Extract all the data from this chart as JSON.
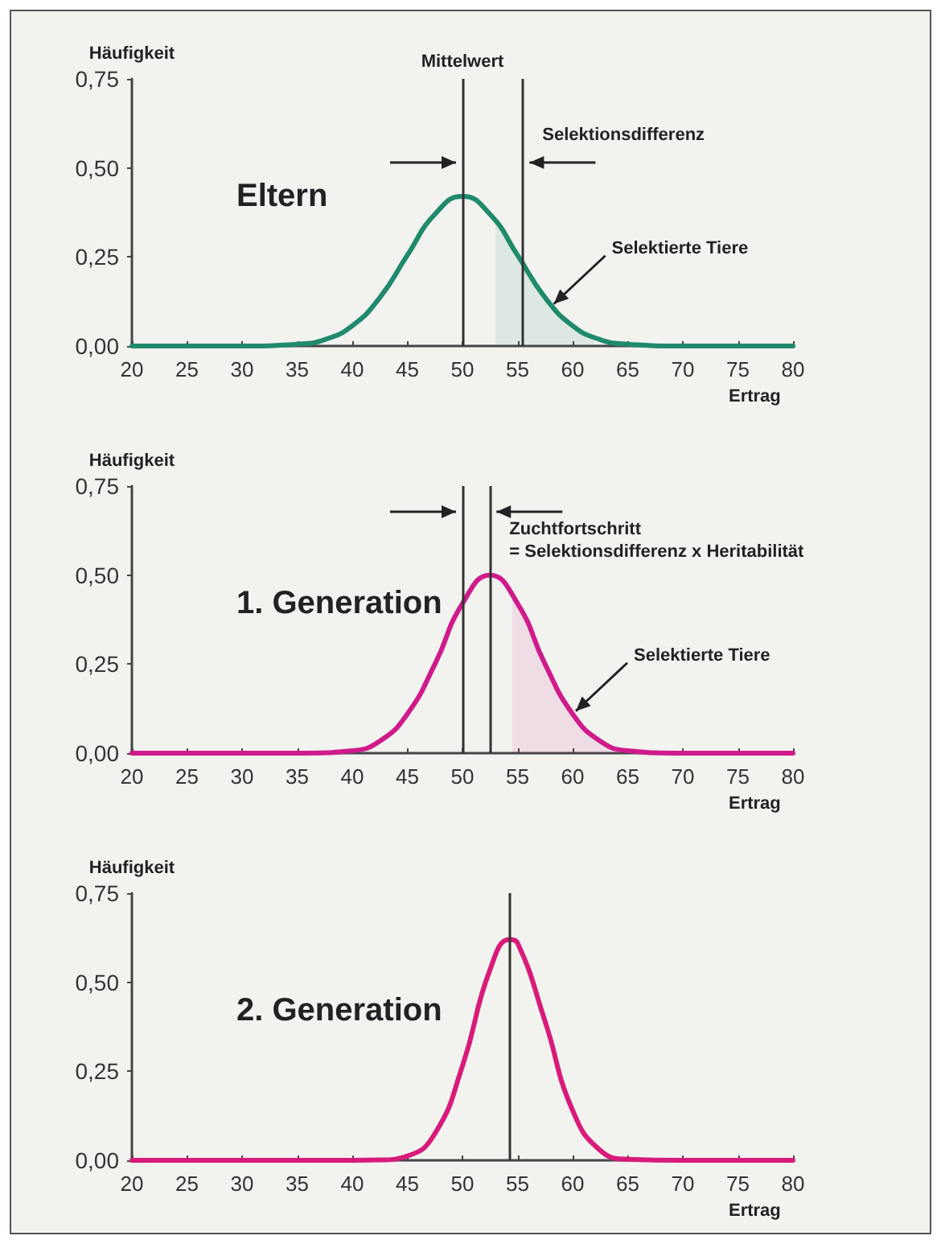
{
  "chart_data": [
    {
      "type": "line",
      "title": "Eltern",
      "xlabel": "Ertrag",
      "ylabel": "Häufigkeit",
      "marker": "none",
      "grid": false,
      "xlim": [
        20,
        80
      ],
      "xticks": [
        20,
        25,
        30,
        35,
        40,
        45,
        50,
        55,
        60,
        65,
        70,
        75,
        80
      ],
      "ylim": [
        0,
        0.75
      ],
      "yticks": [
        {
          "value": 0,
          "label": "0,00"
        },
        {
          "value": 0.25,
          "label": "0,25"
        },
        {
          "value": 0.5,
          "label": "0,50"
        },
        {
          "value": 0.75,
          "label": "0,75"
        }
      ],
      "series": [
        {
          "color": "#1f8a6c",
          "x": [
            20,
            30,
            35,
            37.5,
            40,
            42.5,
            45,
            47.5,
            50,
            52.5,
            55,
            57.5,
            60,
            62.5,
            65,
            70,
            80
          ],
          "values": [
            0,
            0,
            0.005,
            0.018,
            0.057,
            0.136,
            0.255,
            0.37,
            0.42,
            0.37,
            0.255,
            0.136,
            0.057,
            0.018,
            0.005,
            0,
            0
          ]
        },
        {
          "type": "area",
          "color": "#1f8a6c",
          "x": [
            53,
            54,
            55,
            56,
            57,
            58,
            59,
            60,
            61,
            62
          ],
          "values": [
            0.35,
            0.305,
            0.255,
            0.204,
            0.158,
            0.117,
            0.083,
            0.057,
            0.037,
            0.024
          ]
        }
      ],
      "ref_lines": [
        {
          "axis": "x",
          "value": 50,
          "label": "Mittelwert",
          "color": "#333333"
        },
        {
          "axis": "x",
          "value": 55.5,
          "color": "#333333"
        }
      ],
      "annotations": [
        "Selektionsdifferenz",
        {
          "text": "Selektierte Tiere",
          "x": 58,
          "y": 0.1
        }
      ]
    },
    {
      "type": "line",
      "title": "1. Generation",
      "xlabel": "Ertrag",
      "ylabel": "Häufigkeit",
      "marker": "none",
      "grid": false,
      "xlim": [
        20,
        80
      ],
      "xticks": [
        20,
        25,
        30,
        35,
        40,
        45,
        50,
        55,
        60,
        65,
        70,
        75,
        80
      ],
      "ylim": [
        0,
        0.75
      ],
      "yticks": [
        {
          "value": 0,
          "label": "0,00"
        },
        {
          "value": 0.25,
          "label": "0,25"
        },
        {
          "value": 0.5,
          "label": "0,50"
        },
        {
          "value": 0.75,
          "label": "0,75"
        }
      ],
      "series": [
        {
          "color": "#d01a8c",
          "x": [
            20,
            35,
            40,
            42.5,
            45,
            47.5,
            50,
            52.5,
            55,
            57.5,
            60,
            62.5,
            65,
            70,
            80
          ],
          "values": [
            0,
            0,
            0.007,
            0.034,
            0.11,
            0.25,
            0.42,
            0.5,
            0.42,
            0.25,
            0.11,
            0.034,
            0.007,
            0,
            0
          ]
        },
        {
          "type": "area",
          "color": "#d01a8c",
          "x": [
            54.5,
            55,
            56,
            57,
            58,
            59,
            60,
            61,
            62,
            63,
            64
          ],
          "values": [
            0.45,
            0.42,
            0.36,
            0.29,
            0.22,
            0.16,
            0.11,
            0.071,
            0.044,
            0.025,
            0.014
          ]
        }
      ],
      "ref_lines": [
        {
          "axis": "x",
          "value": 50,
          "color": "#333333"
        },
        {
          "axis": "x",
          "value": 52.5,
          "color": "#333333"
        }
      ],
      "annotations": [
        "Zuchtfortschritt\n= Selektionsdifferenz x Heritabilität",
        {
          "text": "Selektierte Tiere",
          "x": 60,
          "y": 0.1
        }
      ]
    },
    {
      "type": "line",
      "title": "2. Generation",
      "xlabel": "Ertrag",
      "ylabel": "Häufigkeit",
      "marker": "none",
      "grid": false,
      "xlim": [
        20,
        80
      ],
      "xticks": [
        20,
        25,
        30,
        35,
        40,
        45,
        50,
        55,
        60,
        65,
        70,
        75,
        80
      ],
      "ylim": [
        0,
        0.75
      ],
      "yticks": [
        {
          "value": 0,
          "label": "0,00"
        },
        {
          "value": 0.25,
          "label": "0,25"
        },
        {
          "value": 0.5,
          "label": "0,50"
        },
        {
          "value": 0.75,
          "label": "0,75"
        }
      ],
      "series": [
        {
          "color": "#d81b7a",
          "x": [
            20,
            40,
            42.5,
            45,
            47.5,
            50,
            52.5,
            54.3,
            55,
            57.5,
            60,
            62.5,
            65,
            70,
            80
          ],
          "values": [
            0,
            0,
            0.001,
            0.012,
            0.075,
            0.265,
            0.535,
            0.62,
            0.61,
            0.39,
            0.14,
            0.028,
            0.003,
            0,
            0
          ]
        }
      ],
      "ref_lines": [
        {
          "axis": "x",
          "value": 54.3,
          "color": "#333333"
        }
      ]
    }
  ]
}
